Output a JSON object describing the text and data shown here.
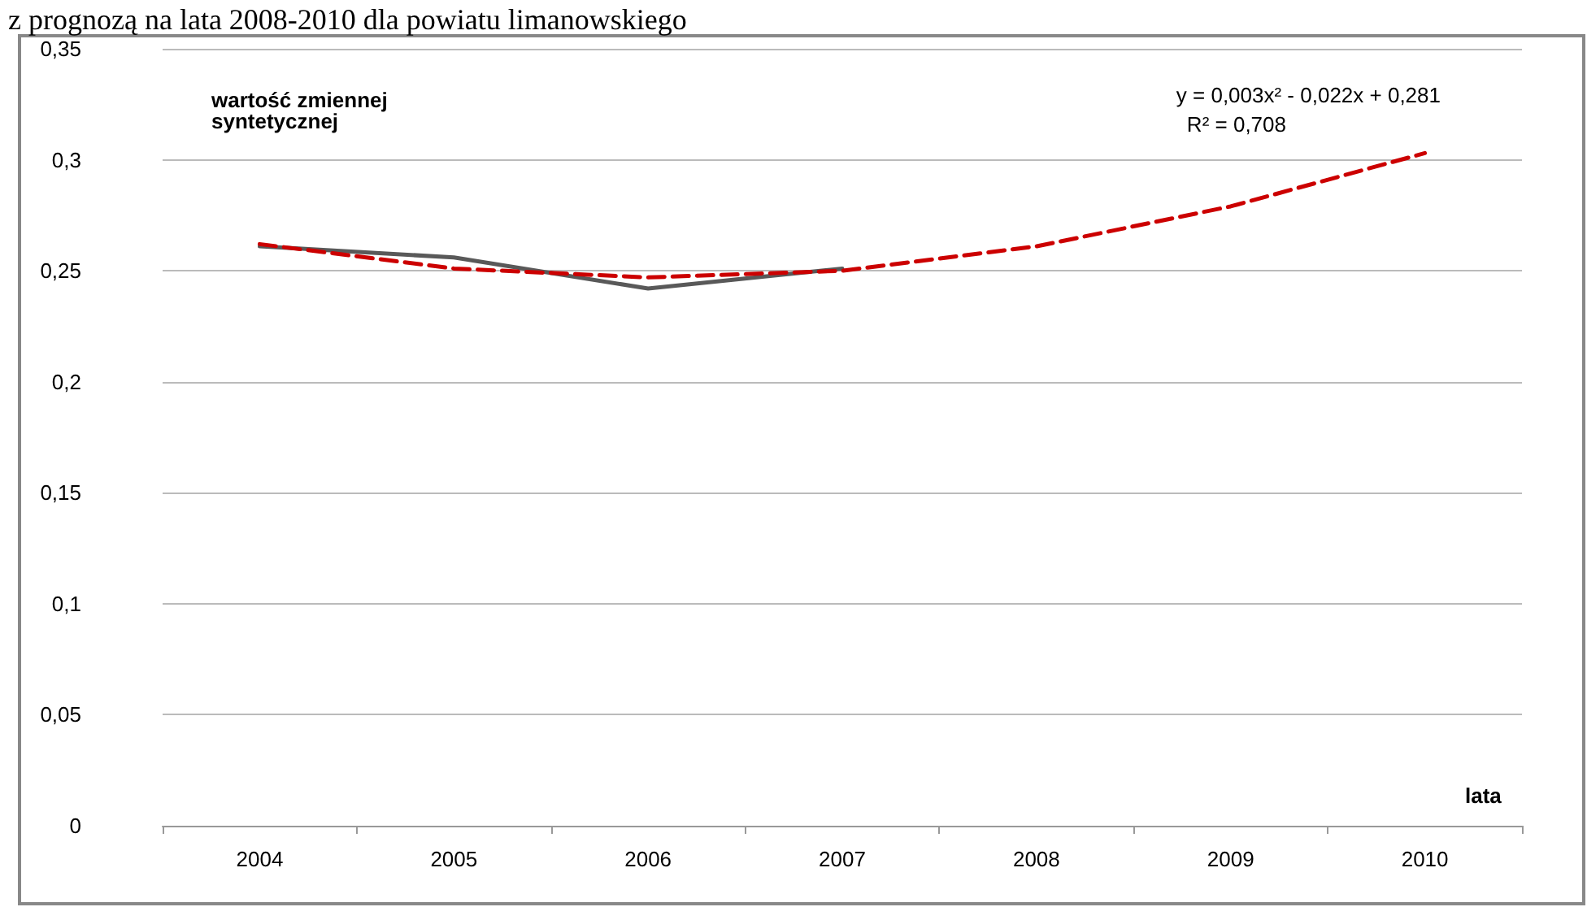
{
  "chart_data": {
    "type": "line",
    "subtitle": "z prognozą na lata 2008-2010 dla powiatu limanowskiego",
    "xlabel": "lata",
    "categories": [
      "2004",
      "2005",
      "2006",
      "2007",
      "2008",
      "2009",
      "2010"
    ],
    "series": [
      {
        "color": "#595959",
        "values": [
          0.261,
          0.256,
          0.242,
          0.251,
          null,
          null,
          null
        ],
        "line_style": "solid"
      },
      {
        "color": "#cc0000",
        "values": [
          0.262,
          0.251,
          0.247,
          0.25,
          0.261,
          0.279,
          0.303
        ],
        "line_style": "dashed"
      }
    ],
    "ylim": [
      0,
      0.35
    ],
    "yticks": [
      {
        "value": 0,
        "label": "0"
      },
      {
        "value": 0.05,
        "label": "0,05"
      },
      {
        "value": 0.1,
        "label": "0,1"
      },
      {
        "value": 0.15,
        "label": "0,15"
      },
      {
        "value": 0.2,
        "label": "0,2"
      },
      {
        "value": 0.25,
        "label": "0,25"
      },
      {
        "value": 0.3,
        "label": "0,3"
      },
      {
        "value": 0.35,
        "label": "0,35"
      }
    ],
    "grid": "y",
    "marker": "none",
    "annotations": [
      "wartość zmiennej syntetycznej",
      "y = 0,003x² - 0,022x + 0,281",
      "R² = 0,708"
    ]
  }
}
